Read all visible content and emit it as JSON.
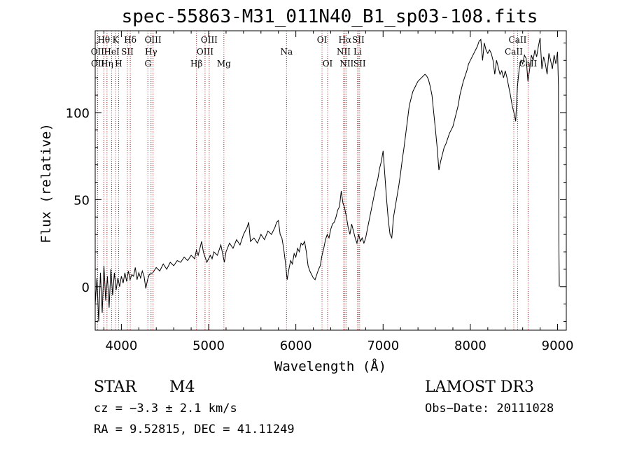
{
  "chart_data": {
    "type": "line",
    "title": "spec-55863-M31_011N40_B1_sp03-108.fits",
    "xlabel": "Wavelength (Å)",
    "ylabel": "Flux (relative)",
    "xlim": [
      3700,
      9100
    ],
    "ylim": [
      -25,
      147
    ],
    "xticks": [
      4000,
      5000,
      6000,
      7000,
      8000,
      9000
    ],
    "yticks": [
      0,
      50,
      100
    ],
    "series": [
      {
        "name": "flux",
        "color": "#000000",
        "points": [
          [
            3700,
            -10
          ],
          [
            3720,
            5
          ],
          [
            3740,
            -20
          ],
          [
            3760,
            8
          ],
          [
            3780,
            -15
          ],
          [
            3800,
            12
          ],
          [
            3820,
            -8
          ],
          [
            3840,
            6
          ],
          [
            3860,
            -12
          ],
          [
            3880,
            10
          ],
          [
            3900,
            -5
          ],
          [
            3920,
            8
          ],
          [
            3940,
            -2
          ],
          [
            3960,
            5
          ],
          [
            3980,
            0
          ],
          [
            4000,
            6
          ],
          [
            4020,
            2
          ],
          [
            4040,
            8
          ],
          [
            4060,
            3
          ],
          [
            4080,
            9
          ],
          [
            4100,
            4
          ],
          [
            4120,
            7
          ],
          [
            4140,
            6
          ],
          [
            4160,
            11
          ],
          [
            4180,
            4
          ],
          [
            4200,
            8
          ],
          [
            4220,
            5
          ],
          [
            4240,
            9
          ],
          [
            4260,
            6
          ],
          [
            4280,
            -1
          ],
          [
            4300,
            4
          ],
          [
            4320,
            7
          ],
          [
            4360,
            8
          ],
          [
            4400,
            11
          ],
          [
            4440,
            9
          ],
          [
            4480,
            13
          ],
          [
            4520,
            10
          ],
          [
            4560,
            14
          ],
          [
            4600,
            12
          ],
          [
            4640,
            15
          ],
          [
            4680,
            14
          ],
          [
            4720,
            17
          ],
          [
            4760,
            15
          ],
          [
            4800,
            18
          ],
          [
            4840,
            16
          ],
          [
            4860,
            21
          ],
          [
            4880,
            18
          ],
          [
            4900,
            22
          ],
          [
            4920,
            26
          ],
          [
            4940,
            20
          ],
          [
            4960,
            17
          ],
          [
            4980,
            14
          ],
          [
            5000,
            16
          ],
          [
            5020,
            18
          ],
          [
            5040,
            16
          ],
          [
            5060,
            20
          ],
          [
            5100,
            18
          ],
          [
            5140,
            24
          ],
          [
            5180,
            14
          ],
          [
            5200,
            20
          ],
          [
            5240,
            25
          ],
          [
            5280,
            22
          ],
          [
            5320,
            27
          ],
          [
            5360,
            24
          ],
          [
            5400,
            30
          ],
          [
            5440,
            34
          ],
          [
            5460,
            37
          ],
          [
            5480,
            26
          ],
          [
            5520,
            28
          ],
          [
            5560,
            25
          ],
          [
            5600,
            30
          ],
          [
            5640,
            27
          ],
          [
            5680,
            32
          ],
          [
            5720,
            30
          ],
          [
            5760,
            34
          ],
          [
            5780,
            37
          ],
          [
            5800,
            38
          ],
          [
            5820,
            30
          ],
          [
            5840,
            28
          ],
          [
            5860,
            22
          ],
          [
            5880,
            14
          ],
          [
            5900,
            4
          ],
          [
            5920,
            10
          ],
          [
            5940,
            15
          ],
          [
            5960,
            13
          ],
          [
            5980,
            19
          ],
          [
            6000,
            17
          ],
          [
            6020,
            22
          ],
          [
            6040,
            20
          ],
          [
            6060,
            25
          ],
          [
            6080,
            24
          ],
          [
            6100,
            26
          ],
          [
            6120,
            20
          ],
          [
            6140,
            12
          ],
          [
            6160,
            9
          ],
          [
            6180,
            7
          ],
          [
            6200,
            5
          ],
          [
            6220,
            4
          ],
          [
            6240,
            7
          ],
          [
            6260,
            10
          ],
          [
            6280,
            12
          ],
          [
            6300,
            18
          ],
          [
            6320,
            22
          ],
          [
            6340,
            27
          ],
          [
            6360,
            30
          ],
          [
            6380,
            28
          ],
          [
            6400,
            33
          ],
          [
            6420,
            36
          ],
          [
            6440,
            37
          ],
          [
            6460,
            40
          ],
          [
            6480,
            44
          ],
          [
            6500,
            46
          ],
          [
            6520,
            55
          ],
          [
            6540,
            48
          ],
          [
            6560,
            45
          ],
          [
            6580,
            40
          ],
          [
            6600,
            34
          ],
          [
            6620,
            30
          ],
          [
            6640,
            36
          ],
          [
            6660,
            32
          ],
          [
            6680,
            28
          ],
          [
            6700,
            25
          ],
          [
            6720,
            30
          ],
          [
            6740,
            26
          ],
          [
            6760,
            28
          ],
          [
            6780,
            25
          ],
          [
            6800,
            28
          ],
          [
            6820,
            33
          ],
          [
            6840,
            38
          ],
          [
            6860,
            43
          ],
          [
            6880,
            48
          ],
          [
            6900,
            53
          ],
          [
            6920,
            58
          ],
          [
            6940,
            62
          ],
          [
            6960,
            68
          ],
          [
            6980,
            72
          ],
          [
            7000,
            78
          ],
          [
            7020,
            64
          ],
          [
            7040,
            50
          ],
          [
            7060,
            38
          ],
          [
            7080,
            30
          ],
          [
            7100,
            28
          ],
          [
            7120,
            40
          ],
          [
            7140,
            46
          ],
          [
            7160,
            52
          ],
          [
            7180,
            58
          ],
          [
            7200,
            65
          ],
          [
            7220,
            73
          ],
          [
            7240,
            80
          ],
          [
            7260,
            88
          ],
          [
            7280,
            96
          ],
          [
            7300,
            104
          ],
          [
            7320,
            108
          ],
          [
            7340,
            112
          ],
          [
            7360,
            114
          ],
          [
            7380,
            116
          ],
          [
            7400,
            118
          ],
          [
            7420,
            119
          ],
          [
            7440,
            120
          ],
          [
            7460,
            121
          ],
          [
            7480,
            122
          ],
          [
            7500,
            121
          ],
          [
            7520,
            119
          ],
          [
            7540,
            115
          ],
          [
            7560,
            110
          ],
          [
            7580,
            100
          ],
          [
            7600,
            90
          ],
          [
            7620,
            80
          ],
          [
            7640,
            67
          ],
          [
            7660,
            72
          ],
          [
            7680,
            76
          ],
          [
            7700,
            80
          ],
          [
            7720,
            82
          ],
          [
            7740,
            85
          ],
          [
            7760,
            88
          ],
          [
            7780,
            90
          ],
          [
            7800,
            92
          ],
          [
            7820,
            96
          ],
          [
            7840,
            100
          ],
          [
            7860,
            104
          ],
          [
            7880,
            110
          ],
          [
            7900,
            114
          ],
          [
            7920,
            118
          ],
          [
            7940,
            121
          ],
          [
            7960,
            124
          ],
          [
            7980,
            128
          ],
          [
            8000,
            130
          ],
          [
            8020,
            132
          ],
          [
            8040,
            134
          ],
          [
            8060,
            136
          ],
          [
            8080,
            138
          ],
          [
            8100,
            141
          ],
          [
            8120,
            142
          ],
          [
            8140,
            130
          ],
          [
            8160,
            140
          ],
          [
            8180,
            136
          ],
          [
            8200,
            134
          ],
          [
            8220,
            136
          ],
          [
            8240,
            134
          ],
          [
            8260,
            130
          ],
          [
            8280,
            122
          ],
          [
            8300,
            130
          ],
          [
            8320,
            126
          ],
          [
            8340,
            122
          ],
          [
            8360,
            124
          ],
          [
            8380,
            120
          ],
          [
            8400,
            124
          ],
          [
            8420,
            120
          ],
          [
            8440,
            115
          ],
          [
            8460,
            110
          ],
          [
            8480,
            104
          ],
          [
            8500,
            100
          ],
          [
            8520,
            95
          ],
          [
            8540,
            115
          ],
          [
            8560,
            125
          ],
          [
            8580,
            130
          ],
          [
            8600,
            128
          ],
          [
            8620,
            133
          ],
          [
            8640,
            131
          ],
          [
            8660,
            118
          ],
          [
            8680,
            125
          ],
          [
            8700,
            133
          ],
          [
            8720,
            130
          ],
          [
            8740,
            136
          ],
          [
            8760,
            132
          ],
          [
            8780,
            138
          ],
          [
            8800,
            143
          ],
          [
            8820,
            125
          ],
          [
            8840,
            132
          ],
          [
            8860,
            128
          ],
          [
            8880,
            122
          ],
          [
            8900,
            134
          ],
          [
            8920,
            130
          ],
          [
            8940,
            125
          ],
          [
            8960,
            133
          ],
          [
            8980,
            128
          ],
          [
            9000,
            135
          ],
          [
            9010,
            115
          ],
          [
            9015,
            25
          ],
          [
            9020,
            0
          ]
        ]
      }
    ],
    "lines": [
      {
        "label": "Hθ",
        "wave": 3798,
        "row": 0
      },
      {
        "label": "OII",
        "wave": 3727,
        "row": 1
      },
      {
        "label": "OII",
        "wave": 3729,
        "row": 2
      },
      {
        "label": "Hη",
        "wave": 3835,
        "row": 2
      },
      {
        "label": "HeI",
        "wave": 3889,
        "row": 1
      },
      {
        "label": "K",
        "wave": 3934,
        "row": 0
      },
      {
        "label": "H",
        "wave": 3969,
        "row": 2
      },
      {
        "label": "SII",
        "wave": 4069,
        "row": 1
      },
      {
        "label": "Hδ",
        "wave": 4102,
        "row": 0
      },
      {
        "label": "OIII",
        "wave": 4363,
        "row": 0
      },
      {
        "label": "Hγ",
        "wave": 4340,
        "row": 1
      },
      {
        "label": "G",
        "wave": 4304,
        "row": 2
      },
      {
        "label": "Hβ",
        "wave": 4861,
        "row": 2
      },
      {
        "label": "OIII",
        "wave": 4959,
        "row": 1
      },
      {
        "label": "OIII",
        "wave": 5007,
        "row": 0
      },
      {
        "label": "Mg",
        "wave": 5175,
        "row": 2
      },
      {
        "label": "Na",
        "wave": 5893,
        "row": 1
      },
      {
        "label": "OI",
        "wave": 6300,
        "row": 0
      },
      {
        "label": "OI",
        "wave": 6364,
        "row": 2
      },
      {
        "label": "Hα",
        "wave": 6563,
        "row": 0
      },
      {
        "label": "NII",
        "wave": 6548,
        "row": 1
      },
      {
        "label": "NII",
        "wave": 6583,
        "row": 2
      },
      {
        "label": "SII",
        "wave": 6716,
        "row": 0
      },
      {
        "label": "Li",
        "wave": 6708,
        "row": 1
      },
      {
        "label": "SII",
        "wave": 6731,
        "row": 2
      },
      {
        "label": "CaII",
        "wave": 8542,
        "row": 0
      },
      {
        "label": "CaII",
        "wave": 8498,
        "row": 1
      },
      {
        "label": "CaII",
        "wave": 8662,
        "row": 2
      }
    ]
  },
  "info": {
    "class_label": "STAR",
    "subclass": "M4",
    "survey": "LAMOST DR3",
    "cz": "cz = −3.3 ± 2.1 km/s",
    "obs_date": "Obs−Date: 20111028",
    "radec": "RA =   9.52815, DEC =  41.11249"
  },
  "colors": {
    "line_marker": "#b22222",
    "spectrum": "#000000"
  }
}
